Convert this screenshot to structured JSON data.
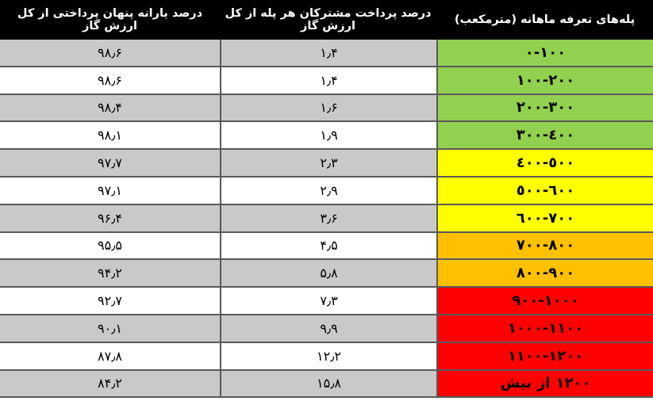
{
  "table": {
    "headers": {
      "subsidy": "درصد یارانه پنهان پرداختی از کل ارزش گاز",
      "payment": "درصد پرداخت مشترکان هر پله از کل ارزش گاز",
      "tier": "پله‌های تعرفه ماهانه (مترمکعب)"
    },
    "rows": [
      {
        "tier": "۰-۱۰۰",
        "tier_color": "green",
        "payment": "۱٫۴",
        "subsidy": "۹۸٫۶"
      },
      {
        "tier": "۱۰۰-۲۰۰",
        "tier_color": "green",
        "payment": "۱٫۴",
        "subsidy": "۹۸٫۶"
      },
      {
        "tier": "۲۰۰-۳۰۰",
        "tier_color": "green",
        "payment": "۱٫۶",
        "subsidy": "۹۸٫۴"
      },
      {
        "tier": "۳۰۰-٤۰۰",
        "tier_color": "green",
        "payment": "۱٫۹",
        "subsidy": "۹۸٫۱"
      },
      {
        "tier": "٤۰۰-٥۰۰",
        "tier_color": "yellow",
        "payment": "۲٫۳",
        "subsidy": "۹۷٫۷"
      },
      {
        "tier": "٥۰۰-٦۰۰",
        "tier_color": "yellow",
        "payment": "۲٫۹",
        "subsidy": "۹۷٫۱"
      },
      {
        "tier": "٦۰۰-۷۰۰",
        "tier_color": "yellow",
        "payment": "۳٫۶",
        "subsidy": "۹۶٫۴"
      },
      {
        "tier": "۷۰۰-۸۰۰",
        "tier_color": "orange",
        "payment": "۴٫۵",
        "subsidy": "۹۵٫۵"
      },
      {
        "tier": "۸۰۰-۹۰۰",
        "tier_color": "orange",
        "payment": "۵٫۸",
        "subsidy": "۹۴٫۲"
      },
      {
        "tier": "۹۰۰-۱۰۰۰",
        "tier_color": "red",
        "payment": "۷٫۳",
        "subsidy": "۹۲٫۷"
      },
      {
        "tier": "۱۰۰۰-۱۱۰۰",
        "tier_color": "red",
        "payment": "۹٫۹",
        "subsidy": "۹۰٫۱"
      },
      {
        "tier": "۱۱۰۰-۱۲۰۰",
        "tier_color": "red",
        "payment": "۱۲٫۲",
        "subsidy": "۸۷٫۸"
      },
      {
        "tier": "بیش از ۱۲۰۰",
        "tier_parts": [
          "بیش",
          "از",
          "۱۲۰۰"
        ],
        "tier_color": "red",
        "payment": "۱۵٫۸",
        "subsidy": "۸۴٫۲"
      }
    ],
    "colors": {
      "green": "#92D050",
      "yellow": "#FFFF00",
      "orange": "#FFC000",
      "red": "#FF0000",
      "stripe": "#C9C9C9",
      "white": "#FFFFFF",
      "header_bg": "#000000",
      "header_text": "#FFFFFF",
      "border": "#595959"
    }
  },
  "chart_data": {
    "type": "table",
    "title": "",
    "columns": [
      "پله‌های تعرفه ماهانه (مترمکعب)",
      "درصد پرداخت مشترکان هر پله از کل ارزش گاز",
      "درصد یارانه پنهان پرداختی از کل ارزش گاز"
    ],
    "categories": [
      "0-100",
      "100-200",
      "200-300",
      "300-400",
      "400-500",
      "500-600",
      "600-700",
      "700-800",
      "800-900",
      "900-1000",
      "1000-1100",
      "1100-1200",
      "بیش از ۱۲۰۰"
    ],
    "series": [
      {
        "name": "درصد پرداخت مشترکان هر پله از کل ارزش گاز",
        "values": [
          1.4,
          1.4,
          1.6,
          1.9,
          2.3,
          2.9,
          3.6,
          4.5,
          5.8,
          7.3,
          9.9,
          12.2,
          15.8
        ]
      },
      {
        "name": "درصد یارانه پنهان پرداختی از کل ارزش گاز",
        "values": [
          98.6,
          98.6,
          98.4,
          98.1,
          97.7,
          97.1,
          96.4,
          95.5,
          94.2,
          92.7,
          90.1,
          87.8,
          84.2
        ]
      }
    ],
    "tier_colors": [
      "green",
      "green",
      "green",
      "green",
      "yellow",
      "yellow",
      "yellow",
      "orange",
      "orange",
      "red",
      "red",
      "red",
      "red"
    ],
    "layout": {
      "direction": "rtl",
      "striped_rows": true,
      "header_background": "#000000"
    }
  }
}
